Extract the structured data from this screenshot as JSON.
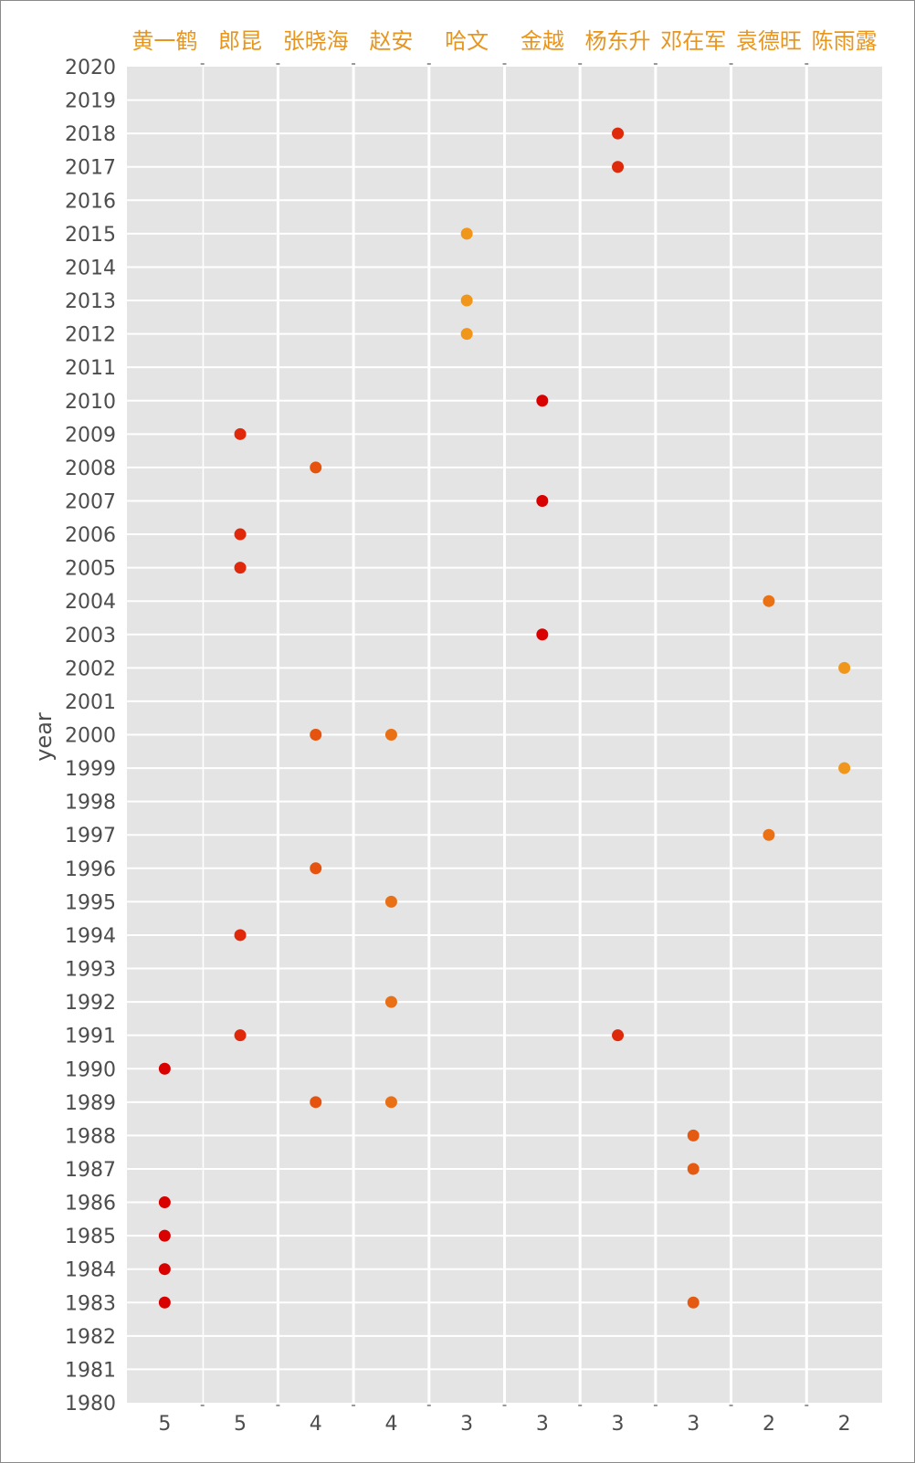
{
  "chart_data": {
    "type": "scatter",
    "title": "",
    "xlabel": "",
    "ylabel": "year",
    "ylim": [
      1980,
      2020
    ],
    "grid": true,
    "legend": "none",
    "categories": [
      "黄一鹤",
      "郎昆",
      "张晓海",
      "赵安",
      "哈文",
      "金越",
      "杨东升",
      "邓在军",
      "袁德旺",
      "陈雨露"
    ],
    "counts": [
      "5",
      "5",
      "4",
      "4",
      "3",
      "3",
      "3",
      "3",
      "2",
      "2"
    ],
    "series": [
      {
        "name": "黄一鹤",
        "color": "#d90000",
        "years": [
          1990,
          1986,
          1985,
          1984,
          1983
        ]
      },
      {
        "name": "郎昆",
        "color": "#e0280a",
        "years": [
          2009,
          2006,
          2005,
          1994,
          1991
        ]
      },
      {
        "name": "张晓海",
        "color": "#e5530f",
        "years": [
          2008,
          2000,
          1996,
          1989
        ]
      },
      {
        "name": "赵安",
        "color": "#ea7015",
        "years": [
          2000,
          1995,
          1992,
          1989
        ]
      },
      {
        "name": "哈文",
        "color": "#f0961b",
        "years": [
          2015,
          2013,
          2012
        ]
      },
      {
        "name": "金越",
        "color": "#d90000",
        "years": [
          2010,
          2007,
          2003
        ]
      },
      {
        "name": "杨东升",
        "color": "#de2a0a",
        "years": [
          2018,
          2017,
          1991
        ]
      },
      {
        "name": "邓在军",
        "color": "#e55a12",
        "years": [
          1988,
          1987,
          1983
        ]
      },
      {
        "name": "袁德旺",
        "color": "#ea7214",
        "years": [
          2004,
          1997
        ]
      },
      {
        "name": "陈雨露",
        "color": "#f0961b",
        "years": [
          2002,
          1999
        ]
      }
    ],
    "header_color": "#e8951e"
  }
}
